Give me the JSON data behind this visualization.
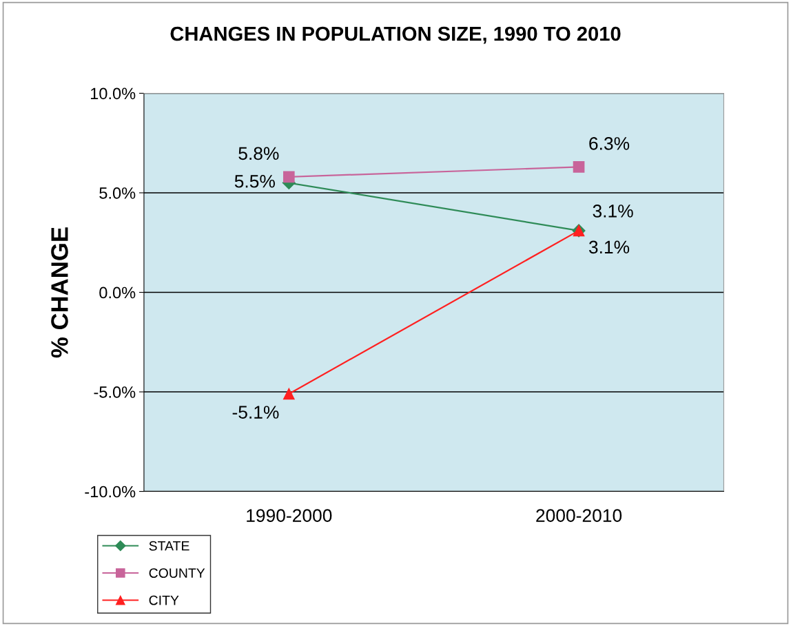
{
  "chart_data": {
    "type": "line",
    "title": "CHANGES IN POPULATION SIZE, 1990 TO 2010",
    "ylabel": "% CHANGE",
    "categories": [
      "1990-2000",
      "2000-2010"
    ],
    "series": [
      {
        "name": "STATE",
        "color": "#2e8b57",
        "marker": "diamond",
        "values": [
          5.5,
          3.1
        ],
        "value_labels": [
          "5.5%",
          "3.1%"
        ]
      },
      {
        "name": "COUNTY",
        "color": "#c8649a",
        "marker": "square",
        "values": [
          5.8,
          6.3
        ],
        "value_labels": [
          "5.8%",
          "6.3%"
        ]
      },
      {
        "name": "CITY",
        "color": "#ff2020",
        "marker": "triangle",
        "values": [
          -5.1,
          3.1
        ],
        "value_labels": [
          "-5.1%",
          "3.1%"
        ]
      }
    ],
    "ylim": [
      -10,
      10
    ],
    "yticks": [
      {
        "value": -10,
        "label": "-10.0%"
      },
      {
        "value": -5,
        "label": "-5.0%"
      },
      {
        "value": 0,
        "label": "0.0%"
      },
      {
        "value": 5,
        "label": "5.0%"
      },
      {
        "value": 10,
        "label": "10.0%"
      }
    ],
    "grid": "y",
    "legend": "bottom left"
  }
}
